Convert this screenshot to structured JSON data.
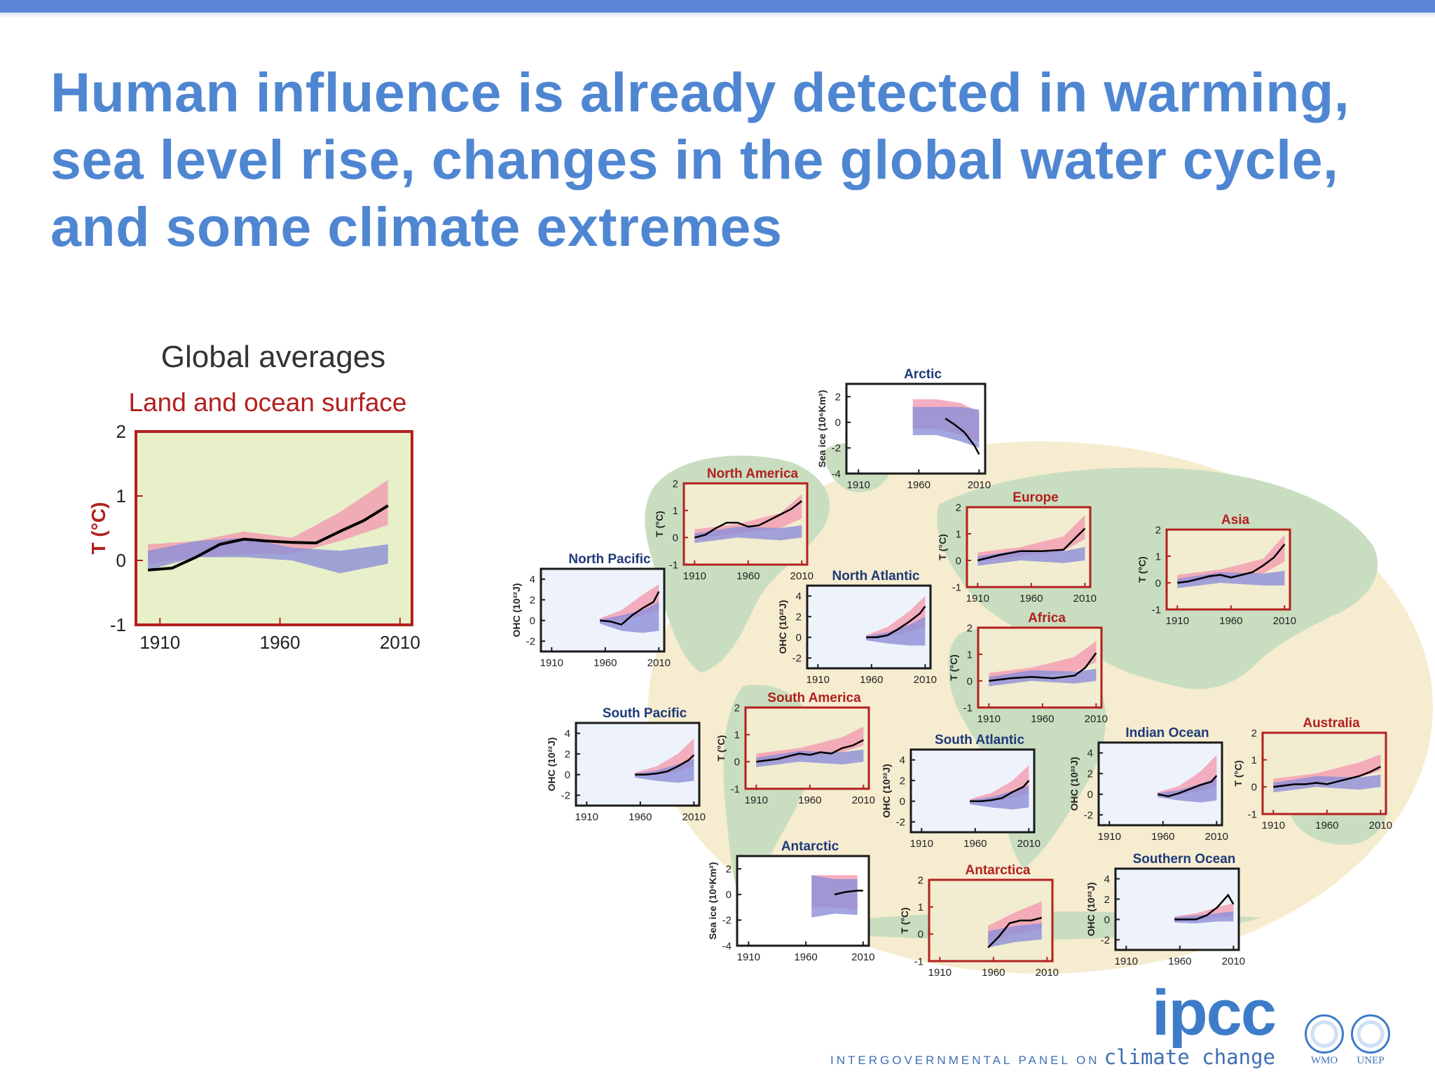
{
  "slide": {
    "title_lines": [
      "Human influence is already detected in warming,",
      "sea level rise, changes in the global water cycle,",
      "and some climate extremes"
    ]
  },
  "global": {
    "heading": "Global averages",
    "subheading": "Land and ocean surface"
  },
  "chart_data": [
    {
      "id": "global",
      "type": "line",
      "title": "Land and ocean surface",
      "ylabel": "T (°C)",
      "ylim": [
        -1,
        2
      ],
      "yticks": [
        -1,
        0,
        1,
        2
      ],
      "xticks": [
        1910,
        1960,
        2010
      ],
      "background": "#e7f0c9",
      "frame": "#b2201e",
      "obs_x": [
        1905,
        1915,
        1925,
        1935,
        1945,
        1955,
        1965,
        1975,
        1985,
        1995,
        2005
      ],
      "obs_y": [
        -0.15,
        -0.12,
        0.05,
        0.25,
        0.33,
        0.3,
        0.28,
        0.27,
        0.45,
        0.62,
        0.85
      ],
      "pink_x": [
        1905,
        1925,
        1945,
        1965,
        1985,
        2005
      ],
      "pink_lo": [
        -0.05,
        0.05,
        0.1,
        0.1,
        0.3,
        0.55
      ],
      "pink_hi": [
        0.25,
        0.3,
        0.45,
        0.35,
        0.75,
        1.25
      ],
      "blue_x": [
        1905,
        1925,
        1945,
        1965,
        1985,
        2005
      ],
      "blue_lo": [
        -0.15,
        0.05,
        0.05,
        0.0,
        -0.2,
        -0.05
      ],
      "blue_hi": [
        0.15,
        0.3,
        0.35,
        0.2,
        0.15,
        0.25
      ]
    },
    {
      "id": "arctic",
      "type": "line",
      "title": "Arctic",
      "ylabel": "Sea ice (10⁶Km²)",
      "ylim": [
        -4,
        3
      ],
      "yticks": [
        -4,
        -2,
        0,
        2
      ],
      "xticks": [
        1910,
        1960,
        2010
      ],
      "background": "#ffffff",
      "frame": "#1a1a1a",
      "obs_x": [
        1982,
        1990,
        1998,
        2006,
        2010
      ],
      "obs_y": [
        0.3,
        -0.2,
        -0.8,
        -1.8,
        -2.5
      ],
      "pink_x": [
        1955,
        1975,
        1995,
        2010
      ],
      "pink_lo": [
        -0.5,
        -0.5,
        -1.0,
        -1.5
      ],
      "pink_hi": [
        1.8,
        1.8,
        1.5,
        0.8
      ],
      "blue_x": [
        1955,
        1975,
        1995,
        2010
      ],
      "blue_lo": [
        -1.0,
        -1.0,
        -1.5,
        -2.0
      ],
      "blue_hi": [
        1.2,
        1.2,
        1.2,
        1.0
      ]
    },
    {
      "id": "north-america",
      "type": "line",
      "title": "North America",
      "ylabel": "T (°C)",
      "ylim": [
        -1,
        2
      ],
      "yticks": [
        -1,
        0,
        1,
        2
      ],
      "xticks": [
        1910,
        1960,
        2010
      ],
      "background": "#f2ecd1",
      "frame": "#b2201e",
      "obs_x": [
        1910,
        1920,
        1930,
        1940,
        1950,
        1960,
        1970,
        1980,
        1990,
        2000,
        2010
      ],
      "obs_y": [
        0,
        0.1,
        0.35,
        0.55,
        0.55,
        0.4,
        0.45,
        0.65,
        0.85,
        1.05,
        1.35
      ],
      "pink_x": [
        1910,
        1950,
        1990,
        2010
      ],
      "pink_lo": [
        -0.05,
        0.15,
        0.35,
        0.7
      ],
      "pink_hi": [
        0.3,
        0.5,
        0.9,
        1.6
      ],
      "blue_x": [
        1910,
        1950,
        1990,
        2010
      ],
      "blue_lo": [
        -0.2,
        0,
        -0.1,
        0.0
      ],
      "blue_hi": [
        0.15,
        0.4,
        0.35,
        0.45
      ]
    },
    {
      "id": "europe",
      "type": "line",
      "title": "Europe",
      "ylabel": "T (°C)",
      "ylim": [
        -1,
        2
      ],
      "yticks": [
        -1,
        0,
        1,
        2
      ],
      "xticks": [
        1910,
        1960,
        2010
      ],
      "background": "#f2ecd1",
      "frame": "#b2201e",
      "obs_x": [
        1910,
        1930,
        1950,
        1970,
        1990,
        2010
      ],
      "obs_y": [
        0,
        0.2,
        0.35,
        0.35,
        0.4,
        1.2
      ],
      "pink_x": [
        1910,
        1950,
        1990,
        2010
      ],
      "pink_lo": [
        -0.05,
        0.15,
        0.35,
        0.8
      ],
      "pink_hi": [
        0.3,
        0.5,
        0.9,
        1.7
      ],
      "blue_x": [
        1910,
        1950,
        1990,
        2010
      ],
      "blue_lo": [
        -0.2,
        0,
        -0.1,
        0.0
      ],
      "blue_hi": [
        0.15,
        0.4,
        0.35,
        0.5
      ]
    },
    {
      "id": "asia",
      "type": "line",
      "title": "Asia",
      "ylabel": "T (°C)",
      "ylim": [
        -1,
        2
      ],
      "yticks": [
        -1,
        0,
        1,
        2
      ],
      "xticks": [
        1910,
        1960,
        2010
      ],
      "background": "#f2ecd1",
      "frame": "#b2201e",
      "obs_x": [
        1910,
        1920,
        1930,
        1940,
        1950,
        1960,
        1970,
        1980,
        1990,
        2000,
        2010
      ],
      "obs_y": [
        0,
        0.05,
        0.15,
        0.25,
        0.3,
        0.2,
        0.3,
        0.4,
        0.65,
        0.95,
        1.45
      ],
      "pink_x": [
        1910,
        1950,
        1990,
        2010
      ],
      "pink_lo": [
        -0.05,
        0.15,
        0.35,
        0.8
      ],
      "pink_hi": [
        0.3,
        0.5,
        0.9,
        1.8
      ],
      "blue_x": [
        1910,
        1950,
        1990,
        2010
      ],
      "blue_lo": [
        -0.2,
        0,
        -0.1,
        -0.1
      ],
      "blue_hi": [
        0.15,
        0.4,
        0.35,
        0.45
      ]
    },
    {
      "id": "north-pacific",
      "type": "line",
      "title": "North Pacific",
      "ylabel": "OHC (10²²J)",
      "ylim": [
        -3,
        5
      ],
      "yticks": [
        -2,
        0,
        2,
        4
      ],
      "xticks": [
        1910,
        1960,
        2010
      ],
      "background": "#eef3fb",
      "frame": "#1a1a1a",
      "obs_x": [
        1955,
        1965,
        1975,
        1985,
        1995,
        2005,
        2010
      ],
      "obs_y": [
        0,
        -0.1,
        -0.4,
        0.5,
        1.2,
        1.8,
        2.8
      ],
      "pink_x": [
        1955,
        1975,
        1995,
        2010
      ],
      "pink_lo": [
        -0.2,
        0,
        0.5,
        1.0
      ],
      "pink_hi": [
        0.2,
        1.0,
        2.5,
        3.5
      ],
      "blue_x": [
        1955,
        1975,
        1995,
        2010
      ],
      "blue_lo": [
        -0.3,
        -1.0,
        -1.2,
        -1.0
      ],
      "blue_hi": [
        0.1,
        0.5,
        1.0,
        1.8
      ]
    },
    {
      "id": "north-atlantic",
      "type": "line",
      "title": "North Atlantic",
      "ylabel": "OHC (10²²J)",
      "ylim": [
        -3,
        5
      ],
      "yticks": [
        -2,
        0,
        2,
        4
      ],
      "xticks": [
        1910,
        1960,
        2010
      ],
      "background": "#eef3fb",
      "frame": "#1a1a1a",
      "obs_x": [
        1955,
        1965,
        1975,
        1985,
        1995,
        2005,
        2010
      ],
      "obs_y": [
        0,
        0,
        0.2,
        0.8,
        1.5,
        2.3,
        3.0
      ],
      "pink_x": [
        1955,
        1975,
        1995,
        2010
      ],
      "pink_lo": [
        -0.2,
        0.1,
        0.5,
        1.0
      ],
      "pink_hi": [
        0.2,
        1.0,
        2.5,
        4.0
      ],
      "blue_x": [
        1955,
        1975,
        1995,
        2010
      ],
      "blue_lo": [
        -0.3,
        -0.6,
        -0.8,
        -0.8
      ],
      "blue_hi": [
        0.1,
        0.5,
        1.2,
        2.0
      ]
    },
    {
      "id": "africa",
      "type": "line",
      "title": "Africa",
      "ylabel": "T (°C)",
      "ylim": [
        -1,
        2
      ],
      "yticks": [
        -1,
        0,
        1,
        2
      ],
      "xticks": [
        1910,
        1960,
        2010
      ],
      "background": "#f2ecd1",
      "frame": "#b2201e",
      "obs_x": [
        1910,
        1930,
        1950,
        1970,
        1990,
        2000,
        2010
      ],
      "obs_y": [
        0,
        0.1,
        0.15,
        0.1,
        0.2,
        0.5,
        1.05
      ],
      "pink_x": [
        1910,
        1950,
        1990,
        2010
      ],
      "pink_lo": [
        -0.05,
        0.15,
        0.35,
        0.7
      ],
      "pink_hi": [
        0.3,
        0.5,
        0.9,
        1.5
      ],
      "blue_x": [
        1910,
        1950,
        1990,
        2010
      ],
      "blue_lo": [
        -0.2,
        0,
        -0.1,
        0.0
      ],
      "blue_hi": [
        0.15,
        0.4,
        0.35,
        0.45
      ]
    },
    {
      "id": "south-pacific",
      "type": "line",
      "title": "South Pacific",
      "ylabel": "OHC (10²²J)",
      "ylim": [
        -3,
        5
      ],
      "yticks": [
        -2,
        0,
        2,
        4
      ],
      "xticks": [
        1910,
        1960,
        2010
      ],
      "background": "#eef3fb",
      "frame": "#1a1a1a",
      "obs_x": [
        1955,
        1965,
        1975,
        1985,
        1995,
        2005,
        2010
      ],
      "obs_y": [
        0,
        0,
        0.1,
        0.3,
        0.8,
        1.4,
        1.9
      ],
      "pink_x": [
        1955,
        1975,
        1995,
        2010
      ],
      "pink_lo": [
        -0.2,
        0,
        0.3,
        0.8
      ],
      "pink_hi": [
        0.2,
        0.8,
        2.0,
        3.5
      ],
      "blue_x": [
        1955,
        1975,
        1995,
        2010
      ],
      "blue_lo": [
        -0.3,
        -0.6,
        -0.8,
        -0.6
      ],
      "blue_hi": [
        0.1,
        0.4,
        1.0,
        1.5
      ]
    },
    {
      "id": "south-america",
      "type": "line",
      "title": "South America",
      "ylabel": "T (°C)",
      "ylim": [
        -1,
        2
      ],
      "yticks": [
        -1,
        0,
        1,
        2
      ],
      "xticks": [
        1910,
        1960,
        2010
      ],
      "background": "#f2ecd1",
      "frame": "#b2201e",
      "obs_x": [
        1910,
        1920,
        1930,
        1940,
        1950,
        1960,
        1970,
        1980,
        1990,
        2000,
        2010
      ],
      "obs_y": [
        0,
        0.05,
        0.1,
        0.2,
        0.3,
        0.25,
        0.35,
        0.3,
        0.5,
        0.6,
        0.8
      ],
      "pink_x": [
        1910,
        1950,
        1990,
        2010
      ],
      "pink_lo": [
        -0.05,
        0.15,
        0.35,
        0.6
      ],
      "pink_hi": [
        0.3,
        0.5,
        0.9,
        1.3
      ],
      "blue_x": [
        1910,
        1950,
        1990,
        2010
      ],
      "blue_lo": [
        -0.2,
        0,
        -0.1,
        0.0
      ],
      "blue_hi": [
        0.15,
        0.4,
        0.35,
        0.45
      ]
    },
    {
      "id": "south-atlantic",
      "type": "line",
      "title": "South Atlantic",
      "ylabel": "OHC (10²²J)",
      "ylim": [
        -3,
        5
      ],
      "yticks": [
        -2,
        0,
        2,
        4
      ],
      "xticks": [
        1910,
        1960,
        2010
      ],
      "background": "#eef3fb",
      "frame": "#1a1a1a",
      "obs_x": [
        1955,
        1965,
        1975,
        1985,
        1995,
        2005,
        2010
      ],
      "obs_y": [
        0,
        0,
        0.1,
        0.3,
        0.9,
        1.4,
        2.0
      ],
      "pink_x": [
        1955,
        1975,
        1995,
        2010
      ],
      "pink_lo": [
        -0.2,
        0,
        0.3,
        0.8
      ],
      "pink_hi": [
        0.2,
        0.8,
        2.0,
        3.5
      ],
      "blue_x": [
        1955,
        1975,
        1995,
        2010
      ],
      "blue_lo": [
        -0.3,
        -0.6,
        -0.8,
        -0.6
      ],
      "blue_hi": [
        0.1,
        0.4,
        1.0,
        1.5
      ]
    },
    {
      "id": "indian-ocean",
      "type": "line",
      "title": "Indian Ocean",
      "ylabel": "OHC (10²²J)",
      "ylim": [
        -3,
        5
      ],
      "yticks": [
        -2,
        0,
        2,
        4
      ],
      "xticks": [
        1910,
        1960,
        2010
      ],
      "background": "#eef3fb",
      "frame": "#1a1a1a",
      "obs_x": [
        1955,
        1965,
        1975,
        1985,
        1995,
        2005,
        2010
      ],
      "obs_y": [
        0,
        -0.2,
        0.1,
        0.5,
        0.9,
        1.2,
        1.8
      ],
      "pink_x": [
        1955,
        1975,
        1995,
        2010
      ],
      "pink_lo": [
        -0.2,
        0,
        0.3,
        0.8
      ],
      "pink_hi": [
        0.2,
        0.8,
        2.2,
        3.8
      ],
      "blue_x": [
        1955,
        1975,
        1995,
        2010
      ],
      "blue_lo": [
        -0.3,
        -0.6,
        -0.8,
        -0.6
      ],
      "blue_hi": [
        0.1,
        0.4,
        1.0,
        1.6
      ]
    },
    {
      "id": "australia",
      "type": "line",
      "title": "Australia",
      "ylabel": "T (°C)",
      "ylim": [
        -1,
        2
      ],
      "yticks": [
        -1,
        0,
        1,
        2
      ],
      "xticks": [
        1910,
        1960,
        2010
      ],
      "background": "#f2ecd1",
      "frame": "#b2201e",
      "obs_x": [
        1910,
        1920,
        1930,
        1940,
        1950,
        1960,
        1970,
        1980,
        1990,
        2000,
        2010
      ],
      "obs_y": [
        0,
        0.05,
        0.1,
        0.1,
        0.15,
        0.1,
        0.2,
        0.3,
        0.4,
        0.55,
        0.75
      ],
      "pink_x": [
        1910,
        1950,
        1990,
        2010
      ],
      "pink_lo": [
        -0.05,
        0.15,
        0.35,
        0.6
      ],
      "pink_hi": [
        0.3,
        0.5,
        0.9,
        1.2
      ],
      "blue_x": [
        1910,
        1950,
        1990,
        2010
      ],
      "blue_lo": [
        -0.2,
        0,
        -0.1,
        0.0
      ],
      "blue_hi": [
        0.15,
        0.4,
        0.35,
        0.45
      ]
    },
    {
      "id": "antarctic",
      "type": "line",
      "title": "Antarctic",
      "ylabel": "Sea ice (10⁶Km²)",
      "ylim": [
        -4,
        3
      ],
      "yticks": [
        -4,
        -2,
        0,
        2
      ],
      "xticks": [
        1910,
        1960,
        2010
      ],
      "background": "#ffffff",
      "frame": "#1a1a1a",
      "obs_x": [
        1985,
        1995,
        2005,
        2010
      ],
      "obs_y": [
        0,
        0.2,
        0.3,
        0.3
      ],
      "pink_x": [
        1965,
        1985,
        2005
      ],
      "pink_lo": [
        -1.0,
        -1.0,
        -1.2
      ],
      "pink_hi": [
        1.5,
        1.5,
        1.5
      ],
      "blue_x": [
        1965,
        1985,
        2005
      ],
      "blue_lo": [
        -1.8,
        -1.5,
        -1.6
      ],
      "blue_hi": [
        1.5,
        1.2,
        1.2
      ]
    },
    {
      "id": "antarctica",
      "type": "line",
      "title": "Antarctica",
      "ylabel": "T (°C)",
      "ylim": [
        -1,
        2
      ],
      "yticks": [
        -1,
        0,
        1,
        2
      ],
      "xticks": [
        1910,
        1960,
        2010
      ],
      "background": "#f2ecd1",
      "frame": "#b2201e",
      "obs_x": [
        1955,
        1965,
        1975,
        1985,
        1995,
        2005
      ],
      "obs_y": [
        -0.5,
        -0.1,
        0.4,
        0.5,
        0.5,
        0.6
      ],
      "pink_x": [
        1955,
        1980,
        2005
      ],
      "pink_lo": [
        -0.3,
        0,
        0.2
      ],
      "pink_hi": [
        0.3,
        0.8,
        1.2
      ],
      "blue_x": [
        1955,
        1980,
        2005
      ],
      "blue_lo": [
        -0.5,
        -0.3,
        -0.2
      ],
      "blue_hi": [
        0.1,
        0.3,
        0.4
      ]
    },
    {
      "id": "southern-ocean",
      "type": "line",
      "title": "Southern Ocean",
      "ylabel": "OHC (10²²J)",
      "ylim": [
        -3,
        5
      ],
      "yticks": [
        -2,
        0,
        2,
        4
      ],
      "xticks": [
        1910,
        1960,
        2010
      ],
      "background": "#eef3fb",
      "frame": "#1a1a1a",
      "obs_x": [
        1955,
        1965,
        1975,
        1985,
        1995,
        2005,
        2010
      ],
      "obs_y": [
        0,
        0,
        0,
        0.4,
        1.2,
        2.4,
        1.5
      ],
      "pink_x": [
        1955,
        1975,
        1995,
        2010
      ],
      "pink_lo": [
        -0.2,
        0,
        0.2,
        0.3
      ],
      "pink_hi": [
        0.3,
        0.6,
        1.2,
        1.6
      ],
      "blue_x": [
        1955,
        1975,
        1995,
        2010
      ],
      "blue_lo": [
        -0.3,
        -0.4,
        -0.2,
        -0.2
      ],
      "blue_hi": [
        0.2,
        0.4,
        0.6,
        0.8
      ]
    }
  ],
  "footer": {
    "logo": "ipcc",
    "tagline_small": "INTERGOVERNMENTAL PANEL ON",
    "tagline_big": "climate change",
    "partners": [
      "WMO",
      "UNEP"
    ]
  },
  "colors": {
    "title": "#4f86d2",
    "pink_band": "#f29bb0",
    "blue_band": "#8c8fd8",
    "obs_line": "#000000",
    "map_land": "#c9dec0",
    "map_ocean": "#f6ecd0"
  }
}
